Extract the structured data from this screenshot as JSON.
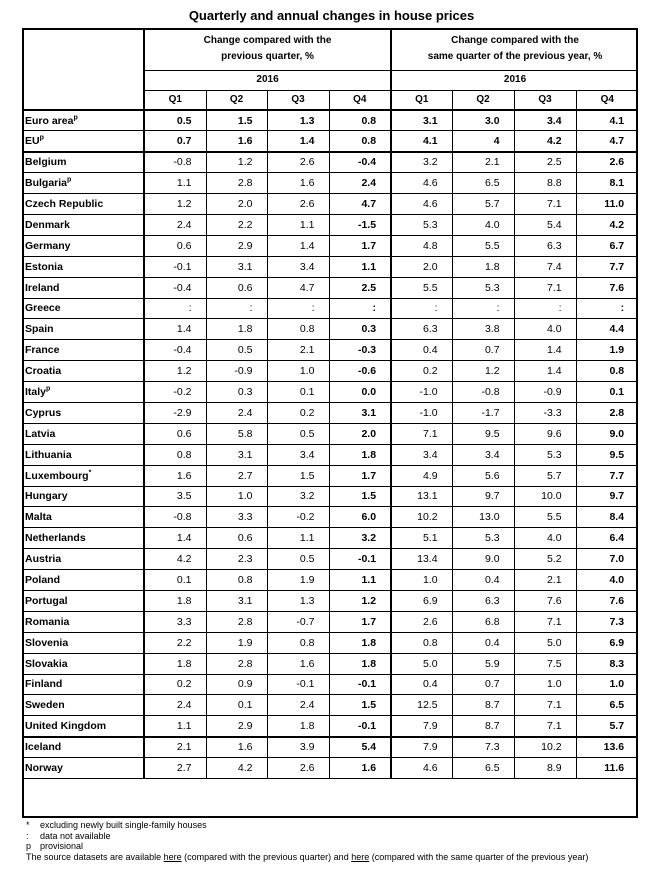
{
  "title": "Quarterly and annual changes in house prices",
  "header": {
    "group1_line1": "Change compared with the",
    "group1_line2": "previous quarter, %",
    "group2_line1": "Change compared with the",
    "group2_line2": "same quarter of the previous year, %",
    "year": "2016",
    "quarters": [
      "Q1",
      "Q2",
      "Q3",
      "Q4"
    ]
  },
  "rows": [
    {
      "country": "Euro area",
      "sup": "p",
      "q": [
        "0.5",
        "1.5",
        "1.3",
        "0.8"
      ],
      "y": [
        "3.1",
        "3.0",
        "3.4",
        "4.1"
      ],
      "allbold": true
    },
    {
      "country": "EU",
      "sup": "p",
      "q": [
        "0.7",
        "1.6",
        "1.4",
        "0.8"
      ],
      "y": [
        "4.1",
        "4",
        "4.2",
        "4.7"
      ],
      "allbold": true
    },
    {
      "country": "Belgium",
      "sup": "",
      "q": [
        "-0.8",
        "1.2",
        "2.6",
        "-0.4"
      ],
      "y": [
        "3.2",
        "2.1",
        "2.5",
        "2.6"
      ]
    },
    {
      "country": "Bulgaria",
      "sup": "p",
      "q": [
        "1.1",
        "2.8",
        "1.6",
        "2.4"
      ],
      "y": [
        "4.6",
        "6.5",
        "8.8",
        "8.1"
      ]
    },
    {
      "country": "Czech Republic",
      "sup": "",
      "q": [
        "1.2",
        "2.0",
        "2.6",
        "4.7"
      ],
      "y": [
        "4.6",
        "5.7",
        "7.1",
        "11.0"
      ]
    },
    {
      "country": "Denmark",
      "sup": "",
      "q": [
        "2.4",
        "2.2",
        "1.1",
        "-1.5"
      ],
      "y": [
        "5.3",
        "4.0",
        "5.4",
        "4.2"
      ]
    },
    {
      "country": "Germany",
      "sup": "",
      "q": [
        "0.6",
        "2.9",
        "1.4",
        "1.7"
      ],
      "y": [
        "4.8",
        "5.5",
        "6.3",
        "6.7"
      ]
    },
    {
      "country": "Estonia",
      "sup": "",
      "q": [
        "-0.1",
        "3.1",
        "3.4",
        "1.1"
      ],
      "y": [
        "2.0",
        "1.8",
        "7.4",
        "7.7"
      ]
    },
    {
      "country": "Ireland",
      "sup": "",
      "q": [
        "-0.4",
        "0.6",
        "4.7",
        "2.5"
      ],
      "y": [
        "5.5",
        "5.3",
        "7.1",
        "7.6"
      ]
    },
    {
      "country": "Greece",
      "sup": "",
      "q": [
        ":",
        ":",
        ":",
        ":"
      ],
      "y": [
        ":",
        ":",
        ":",
        ":"
      ]
    },
    {
      "country": "Spain",
      "sup": "",
      "q": [
        "1.4",
        "1.8",
        "0.8",
        "0.3"
      ],
      "y": [
        "6.3",
        "3.8",
        "4.0",
        "4.4"
      ]
    },
    {
      "country": "France",
      "sup": "",
      "q": [
        "-0.4",
        "0.5",
        "2.1",
        "-0.3"
      ],
      "y": [
        "0.4",
        "0.7",
        "1.4",
        "1.9"
      ]
    },
    {
      "country": "Croatia",
      "sup": "",
      "q": [
        "1.2",
        "-0.9",
        "1.0",
        "-0.6"
      ],
      "y": [
        "0.2",
        "1.2",
        "1.4",
        "0.8"
      ]
    },
    {
      "country": "Italy",
      "sup": "p",
      "q": [
        "-0.2",
        "0.3",
        "0.1",
        "0.0"
      ],
      "y": [
        "-1.0",
        "-0.8",
        "-0.9",
        "0.1"
      ]
    },
    {
      "country": "Cyprus",
      "sup": "",
      "q": [
        "-2.9",
        "2.4",
        "0.2",
        "3.1"
      ],
      "y": [
        "-1.0",
        "-1.7",
        "-3.3",
        "2.8"
      ]
    },
    {
      "country": "Latvia",
      "sup": "",
      "q": [
        "0.6",
        "5.8",
        "0.5",
        "2.0"
      ],
      "y": [
        "7.1",
        "9.5",
        "9.6",
        "9.0"
      ]
    },
    {
      "country": "Lithuania",
      "sup": "",
      "q": [
        "0.8",
        "3.1",
        "3.4",
        "1.8"
      ],
      "y": [
        "3.4",
        "3.4",
        "5.3",
        "9.5"
      ]
    },
    {
      "country": "Luxembourg",
      "sup": "*",
      "q": [
        "1.6",
        "2.7",
        "1.5",
        "1.7"
      ],
      "y": [
        "4.9",
        "5.6",
        "5.7",
        "7.7"
      ]
    },
    {
      "country": "Hungary",
      "sup": "",
      "q": [
        "3.5",
        "1.0",
        "3.2",
        "1.5"
      ],
      "y": [
        "13.1",
        "9.7",
        "10.0",
        "9.7"
      ]
    },
    {
      "country": "Malta",
      "sup": "",
      "q": [
        "-0.8",
        "3.3",
        "-0.2",
        "6.0"
      ],
      "y": [
        "10.2",
        "13.0",
        "5.5",
        "8.4"
      ]
    },
    {
      "country": "Netherlands",
      "sup": "",
      "q": [
        "1.4",
        "0.6",
        "1.1",
        "3.2"
      ],
      "y": [
        "5.1",
        "5.3",
        "4.0",
        "6.4"
      ]
    },
    {
      "country": "Austria",
      "sup": "",
      "q": [
        "4.2",
        "2.3",
        "0.5",
        "-0.1"
      ],
      "y": [
        "13.4",
        "9.0",
        "5.2",
        "7.0"
      ]
    },
    {
      "country": "Poland",
      "sup": "",
      "q": [
        "0.1",
        "0.8",
        "1.9",
        "1.1"
      ],
      "y": [
        "1.0",
        "0.4",
        "2.1",
        "4.0"
      ]
    },
    {
      "country": "Portugal",
      "sup": "",
      "q": [
        "1.8",
        "3.1",
        "1.3",
        "1.2"
      ],
      "y": [
        "6.9",
        "6.3",
        "7.6",
        "7.6"
      ]
    },
    {
      "country": "Romania",
      "sup": "",
      "q": [
        "3.3",
        "2.8",
        "-0.7",
        "1.7"
      ],
      "y": [
        "2.6",
        "6.8",
        "7.1",
        "7.3"
      ]
    },
    {
      "country": "Slovenia",
      "sup": "",
      "q": [
        "2.2",
        "1.9",
        "0.8",
        "1.8"
      ],
      "y": [
        "0.8",
        "0.4",
        "5.0",
        "6.9"
      ]
    },
    {
      "country": "Slovakia",
      "sup": "",
      "q": [
        "1.8",
        "2.8",
        "1.6",
        "1.8"
      ],
      "y": [
        "5.0",
        "5.9",
        "7.5",
        "8.3"
      ]
    },
    {
      "country": "Finland",
      "sup": "",
      "q": [
        "0.2",
        "0.9",
        "-0.1",
        "-0.1"
      ],
      "y": [
        "0.4",
        "0.7",
        "1.0",
        "1.0"
      ]
    },
    {
      "country": "Sweden",
      "sup": "",
      "q": [
        "2.4",
        "0.1",
        "2.4",
        "1.5"
      ],
      "y": [
        "12.5",
        "8.7",
        "7.1",
        "6.5"
      ]
    },
    {
      "country": "United Kingdom",
      "sup": "",
      "q": [
        "1.1",
        "2.9",
        "1.8",
        "-0.1"
      ],
      "y": [
        "7.9",
        "8.7",
        "7.1",
        "5.7"
      ]
    },
    {
      "country": "Iceland",
      "sup": "",
      "q": [
        "2.1",
        "1.6",
        "3.9",
        "5.4"
      ],
      "y": [
        "7.9",
        "7.3",
        "10.2",
        "13.6"
      ]
    },
    {
      "country": "Norway",
      "sup": "",
      "q": [
        "2.7",
        "4.2",
        "2.6",
        "1.6"
      ],
      "y": [
        "4.6",
        "6.5",
        "8.9",
        "11.6"
      ]
    }
  ],
  "thick_after": [
    "EU",
    "United Kingdom"
  ],
  "notes": {
    "n1_sym": "*",
    "n1_text": "excluding newly built single-family houses",
    "n2_sym": ":",
    "n2_text": "data not available",
    "n3_sym": "p",
    "n3_text": "provisional",
    "source_a": "The source datasets are available ",
    "link1": "here",
    "source_b": " (compared with the previous quarter) and ",
    "link2": "here",
    "source_c": " (compared with the same quarter of the previous year)"
  }
}
